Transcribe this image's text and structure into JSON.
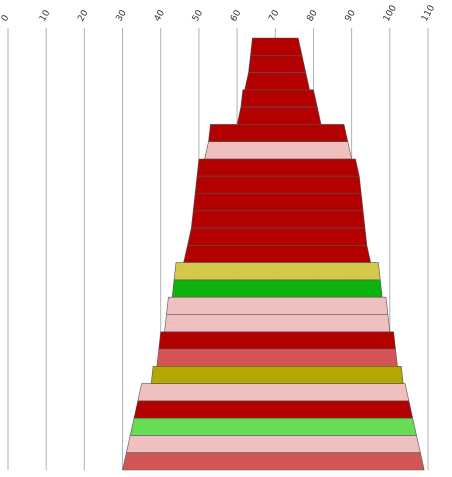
{
  "chart_data": {
    "type": "area",
    "orientation": "horizontal-range-bands",
    "title": "",
    "xlabel": "",
    "ylabel": "",
    "xlim": [
      0,
      110
    ],
    "x_ticks": [
      0,
      10,
      20,
      30,
      40,
      50,
      60,
      70,
      80,
      90,
      100,
      110
    ],
    "grid": true,
    "legend": "none",
    "bands": [
      {
        "start_top": 64,
        "end_top": 76,
        "start_bottom": 63.5,
        "end_bottom": 77,
        "color": "#b30000"
      },
      {
        "start_top": 63.5,
        "end_top": 77,
        "start_bottom": 63,
        "end_bottom": 78,
        "color": "#b30000"
      },
      {
        "start_top": 63,
        "end_top": 78,
        "start_bottom": 62,
        "end_bottom": 79,
        "color": "#b30000"
      },
      {
        "start_top": 61.5,
        "end_top": 80,
        "start_bottom": 61,
        "end_bottom": 81,
        "color": "#b30000"
      },
      {
        "start_top": 61,
        "end_top": 81,
        "start_bottom": 60,
        "end_bottom": 82,
        "color": "#b30000"
      },
      {
        "start_top": 53,
        "end_top": 88,
        "start_bottom": 52.5,
        "end_bottom": 89,
        "color": "#b30000"
      },
      {
        "start_top": 52.5,
        "end_top": 89,
        "start_bottom": 51.5,
        "end_bottom": 90,
        "color": "#f0c0c0"
      },
      {
        "start_top": 50,
        "end_top": 91,
        "start_bottom": 49.5,
        "end_bottom": 92,
        "color": "#b30000"
      },
      {
        "start_top": 49.5,
        "end_top": 92,
        "start_bottom": 49,
        "end_bottom": 92.5,
        "color": "#b30000"
      },
      {
        "start_top": 49,
        "end_top": 92.5,
        "start_bottom": 48.5,
        "end_bottom": 93,
        "color": "#b30000"
      },
      {
        "start_top": 48.5,
        "end_top": 93,
        "start_bottom": 48,
        "end_bottom": 93.5,
        "color": "#b30000"
      },
      {
        "start_top": 48,
        "end_top": 93.5,
        "start_bottom": 47,
        "end_bottom": 94,
        "color": "#b30000"
      },
      {
        "start_top": 47,
        "end_top": 94,
        "start_bottom": 46,
        "end_bottom": 95,
        "color": "#b30000"
      },
      {
        "start_top": 44,
        "end_top": 97,
        "start_bottom": 43.5,
        "end_bottom": 97.5,
        "color": "#d4c84a"
      },
      {
        "start_top": 43.5,
        "end_top": 97.5,
        "start_bottom": 43,
        "end_bottom": 98,
        "color": "#0db30d"
      },
      {
        "start_top": 42,
        "end_top": 99,
        "start_bottom": 41.5,
        "end_bottom": 99.5,
        "color": "#f0c0c0"
      },
      {
        "start_top": 41.5,
        "end_top": 99.5,
        "start_bottom": 41,
        "end_bottom": 100,
        "color": "#f0c0c0"
      },
      {
        "start_top": 40,
        "end_top": 101,
        "start_bottom": 39.5,
        "end_bottom": 101.5,
        "color": "#b30000"
      },
      {
        "start_top": 39.5,
        "end_top": 101.5,
        "start_bottom": 39,
        "end_bottom": 102,
        "color": "#d45555"
      },
      {
        "start_top": 38,
        "end_top": 103,
        "start_bottom": 37.5,
        "end_bottom": 103.5,
        "color": "#b3a800"
      },
      {
        "start_top": 35,
        "end_top": 104,
        "start_bottom": 34,
        "end_bottom": 105,
        "color": "#f0c0c0"
      },
      {
        "start_top": 34,
        "end_top": 105,
        "start_bottom": 33,
        "end_bottom": 106,
        "color": "#b30000"
      },
      {
        "start_top": 33,
        "end_top": 106,
        "start_bottom": 32,
        "end_bottom": 107,
        "color": "#66dd55"
      },
      {
        "start_top": 32,
        "end_top": 107,
        "start_bottom": 31,
        "end_bottom": 108,
        "color": "#f0c0c0"
      },
      {
        "start_top": 31,
        "end_top": 108,
        "start_bottom": 30,
        "end_bottom": 109,
        "color": "#d45555"
      }
    ]
  }
}
